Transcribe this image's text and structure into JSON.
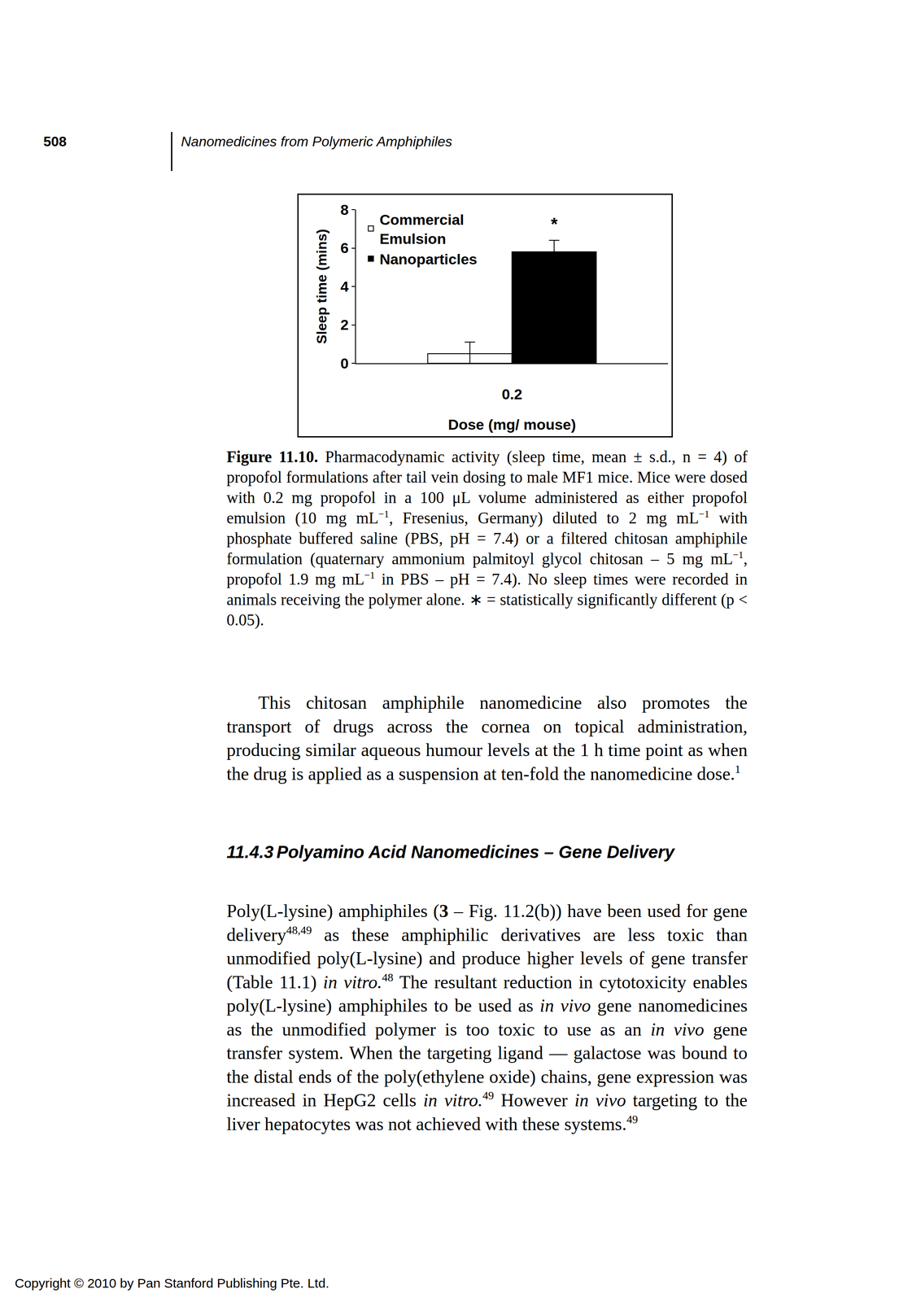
{
  "header": {
    "page_number": "508",
    "running_title": "Nanomedicines from Polymeric Amphiphiles"
  },
  "chart_data": {
    "type": "bar",
    "categories": [
      "0.2"
    ],
    "series": [
      {
        "name": "Commercial Emulsion",
        "color": "#ffffff",
        "values": [
          0.5
        ],
        "error": [
          0.6
        ]
      },
      {
        "name": "Nanoparticles",
        "color": "#000000",
        "values": [
          5.8
        ],
        "error": [
          0.6
        ]
      }
    ],
    "x_label": "Dose (mg/ mouse)",
    "y_label": "Sleep time (mins)",
    "ylim": [
      0,
      8
    ],
    "yticks": [
      0,
      2,
      4,
      6,
      8
    ],
    "grid": false,
    "legend": "upper left",
    "annotations": [
      {
        "text": "*",
        "category": "0.2",
        "series": "Nanoparticles"
      }
    ]
  },
  "caption": {
    "label": "Figure 11.10.",
    "text": [
      "Pharmacodynamic activity (sleep time, mean ± s.d., n = 4) of propofol formulations after tail vein dosing to male MF1 mice. Mice were dosed with 0.2 mg propofol in a 100 μL volume administered as either propofol emulsion (10 mg mL",
      {
        "sup": "−1"
      },
      ", Fresenius, Germany) diluted to 2 mg mL",
      {
        "sup": "−1"
      },
      " with phosphate buffered saline (PBS, pH = 7.4) or a filtered chitosan amphiphile formulation (quaternary ammonium palmitoyl glycol chitosan – 5 mg mL",
      {
        "sup": "−1"
      },
      ", propofol 1.9 mg mL",
      {
        "sup": "−1"
      },
      " in PBS – pH = 7.4). No sleep times were recorded in animals receiving the polymer alone. ∗ = statistically significantly different (p < 0.05)."
    ]
  },
  "paragraphs": [
    [
      "This chitosan amphiphile nanomedicine also promotes the transport of drugs across the cornea on topical administration, producing similar aqueous humour levels at the 1 h time point as when the drug is applied as a suspension at ten-fold the nanomedicine dose.",
      {
        "sup": "1"
      }
    ],
    [
      "Poly(L-lysine) amphiphiles (",
      {
        "b": "3"
      },
      " – Fig. 11.2(b)) have been used for gene delivery",
      {
        "sup": "48,49"
      },
      " as these amphiphilic derivatives are less toxic than unmodified poly(L-lysine) and produce higher levels of gene transfer (Table 11.1) ",
      {
        "i": "in vitro."
      },
      {
        "sup": "48"
      },
      " The resultant reduction in cytotoxicity enables poly(L-lysine) amphiphiles to be used as ",
      {
        "i": "in vivo"
      },
      " gene nanomedicines as the unmodified polymer is too toxic to use as an ",
      {
        "i": "in vivo"
      },
      " gene transfer system. When the targeting ligand — galactose was bound to the distal ends of the poly(ethylene oxide) chains, gene expression was increased in HepG2 cells ",
      {
        "i": "in vitro."
      },
      {
        "sup": "49"
      },
      " However ",
      {
        "i": "in vivo"
      },
      " targeting to the liver hepatocytes was not achieved with these systems.",
      {
        "sup": "49"
      }
    ]
  ],
  "section": {
    "number": "11.4.3",
    "title": "Polyamino Acid Nanomedicines – Gene Delivery"
  },
  "footer": "Copyright © 2010 by Pan Stanford Publishing Pte. Ltd."
}
